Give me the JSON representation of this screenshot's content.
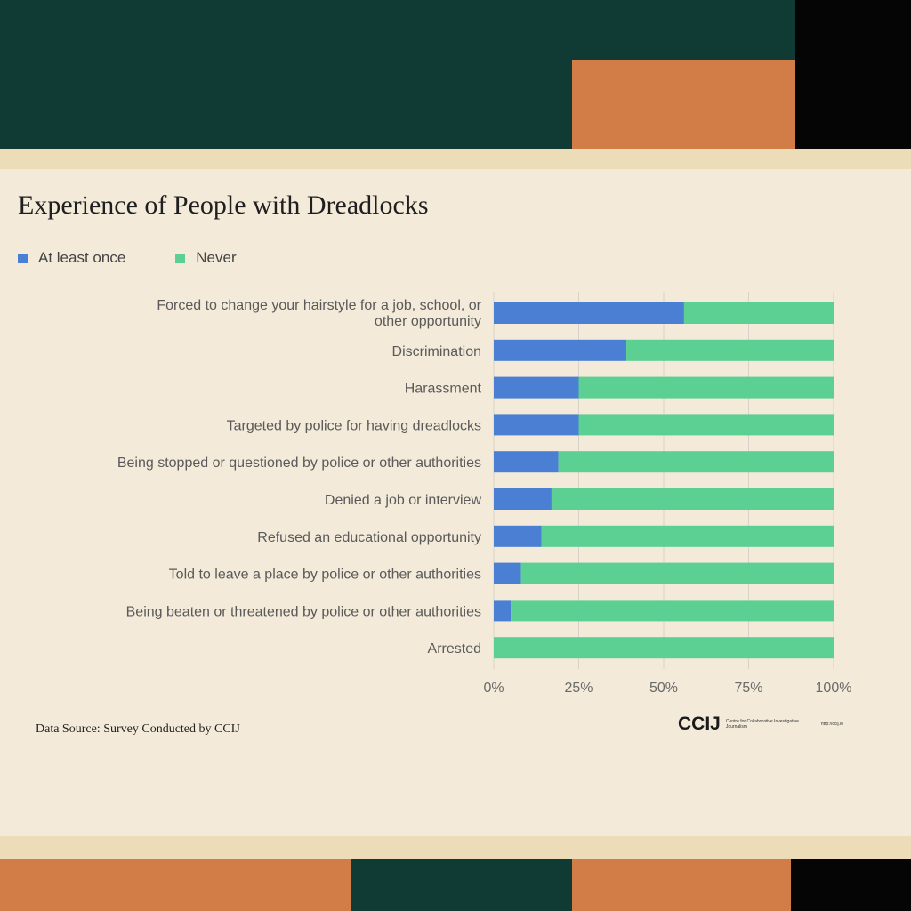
{
  "colors": {
    "at_least_once": "#4a7fd4",
    "never": "#5ccf93",
    "grid": "#d8d2c8",
    "label": "#5a5a5a"
  },
  "title": "Experience of People with Dreadlocks",
  "legend": [
    {
      "label": "At least once",
      "color": "#4a7fd4"
    },
    {
      "label": "Never",
      "color": "#5ccf93"
    }
  ],
  "source": "Data Source: Survey Conducted by CCIJ",
  "logo": {
    "mark": "CCIJ",
    "subtitle": "Centre for Collaborative Investigative Journalism",
    "url": "http://ccij.io"
  },
  "chart_data": {
    "type": "bar",
    "orientation": "horizontal",
    "stacked": "percent",
    "categories": [
      "Forced to change your hairstyle for a job, school, or other opportunity",
      "Discrimination",
      "Harassment",
      "Targeted by police for having dreadlocks",
      "Being stopped or questioned by police or other authorities",
      "Denied a job or interview",
      "Refused an educational opportunity",
      "Told to leave a place by police or other authorities",
      "Being beaten or threatened by police or other authorities",
      "Arrested"
    ],
    "category_lines": [
      [
        "Forced to change your hairstyle for a job, school, or",
        "other opportunity"
      ],
      [
        "Discrimination"
      ],
      [
        "Harassment"
      ],
      [
        "Targeted by police for having dreadlocks"
      ],
      [
        "Being stopped or questioned by police or other authorities"
      ],
      [
        "Denied a job or interview"
      ],
      [
        "Refused an educational opportunity"
      ],
      [
        "Told to leave a place by police or other authorities"
      ],
      [
        "Being beaten or threatened by police or other authorities"
      ],
      [
        "Arrested"
      ]
    ],
    "series": [
      {
        "name": "At least once",
        "values": [
          56,
          39,
          25,
          25,
          19,
          17,
          14,
          8,
          5,
          0
        ]
      },
      {
        "name": "Never",
        "values": [
          44,
          61,
          75,
          75,
          81,
          83,
          86,
          92,
          95,
          100
        ]
      }
    ],
    "x_ticks": [
      "0%",
      "25%",
      "50%",
      "75%",
      "100%"
    ],
    "xlim": [
      0,
      100
    ],
    "grid": true,
    "legend_position": "top-left"
  }
}
